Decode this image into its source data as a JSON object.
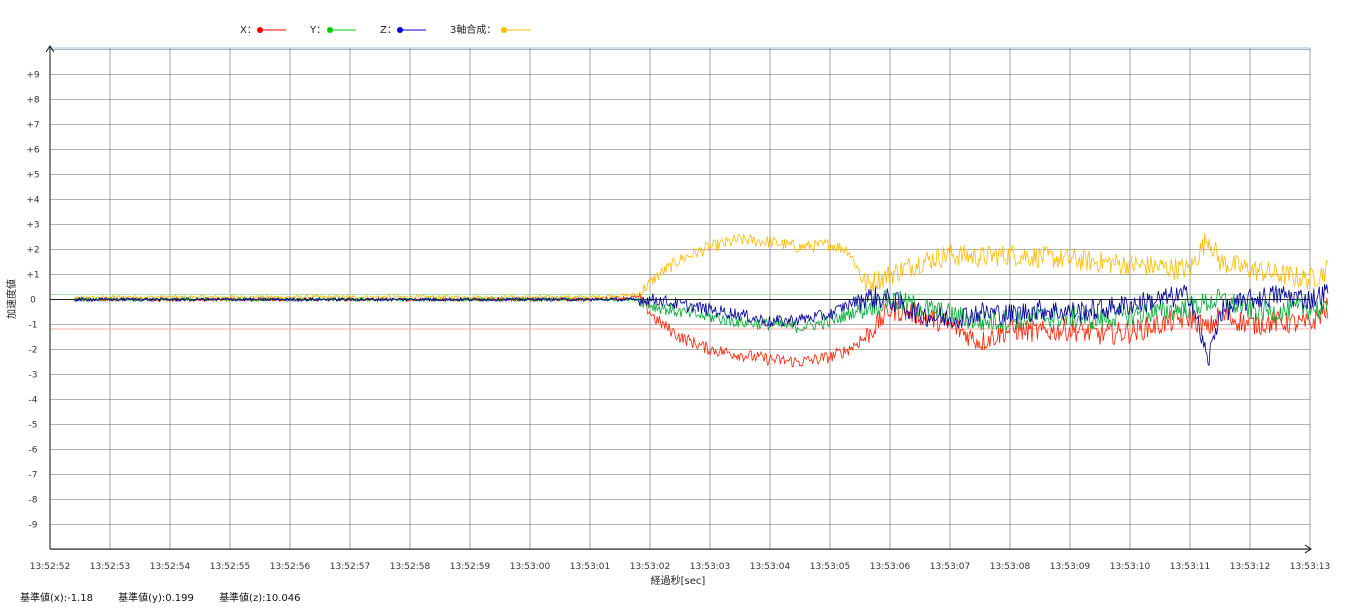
{
  "legend": [
    {
      "label": "X：",
      "color": "#ff0000"
    },
    {
      "label": "Y：",
      "color": "#00cc00"
    },
    {
      "label": "Z：",
      "color": "#0000cc"
    },
    {
      "label": "3軸合成：",
      "color": "#ffbb00"
    }
  ],
  "baseline": {
    "x": "基準値(x):-1.18",
    "y": "基準値(y):0.199",
    "z": "基準値(z):10.046"
  },
  "chart_data": {
    "type": "line",
    "xlabel": "経過秒[sec]",
    "ylabel": "加速度値",
    "x_ticks": [
      "13:52:52",
      "13:52:53",
      "13:52:54",
      "13:52:55",
      "13:52:56",
      "13:52:57",
      "13:52:58",
      "13:52:59",
      "13:53:00",
      "13:53:01",
      "13:53:02",
      "13:53:03",
      "13:53:04",
      "13:53:05",
      "13:53:06",
      "13:53:07",
      "13:53:08",
      "13:53:09",
      "13:53:10",
      "13:53:11",
      "13:53:12",
      "13:53:13"
    ],
    "y_ticks": [
      "+9",
      "+8",
      "+7",
      "+6",
      "+5",
      "+4",
      "+3",
      "+2",
      "+1",
      "0",
      "-1",
      "-2",
      "-3",
      "-4",
      "-5",
      "-6",
      "-7",
      "-8",
      "-9"
    ],
    "xlim_seconds_from_first_tick": [
      0,
      21.3
    ],
    "ylim": [
      -10,
      10
    ],
    "grid": true,
    "legend_position": "top-left",
    "series": [
      {
        "name": "X",
        "color": "#ff2200",
        "x": [
          0.4,
          1,
          2,
          3,
          4,
          5,
          6,
          7,
          8,
          9,
          9.8,
          10.1,
          10.5,
          11,
          11.5,
          12,
          12.5,
          13,
          13.3,
          13.6,
          14,
          14.5,
          15,
          15.5,
          16,
          16.5,
          17,
          17.5,
          18,
          18.5,
          19,
          19.3,
          19.5,
          20,
          20.5,
          21,
          21.3
        ],
        "y": [
          0,
          0,
          0,
          0,
          0,
          0,
          0,
          0,
          0,
          0,
          0.1,
          -0.8,
          -1.5,
          -2,
          -2.2,
          -2.4,
          -2.5,
          -2.3,
          -2,
          -1.5,
          -0.4,
          -0.6,
          -1,
          -1.7,
          -1.2,
          -1.3,
          -1.2,
          -1.4,
          -1.3,
          -1,
          -0.7,
          -1.2,
          -0.6,
          -1,
          -0.9,
          -1,
          -0.3
        ]
      },
      {
        "name": "Y",
        "color": "#00aa33",
        "x": [
          0.4,
          1,
          2,
          3,
          4,
          5,
          6,
          7,
          8,
          9,
          9.8,
          10.1,
          10.5,
          11,
          11.5,
          12,
          12.5,
          13,
          13.3,
          13.6,
          14,
          14.5,
          15,
          15.5,
          16,
          16.5,
          17,
          17.5,
          18,
          18.5,
          19,
          19.5,
          20,
          20.5,
          21,
          21.3
        ],
        "y": [
          0,
          0,
          0,
          0,
          0,
          0,
          0,
          0,
          0,
          0,
          0,
          -0.3,
          -0.5,
          -0.7,
          -0.9,
          -1,
          -1.1,
          -0.9,
          -0.6,
          -0.3,
          0,
          -0.3,
          -0.6,
          -0.9,
          -0.8,
          -0.7,
          -0.7,
          -0.8,
          -0.6,
          -0.5,
          -0.3,
          0,
          -0.4,
          -0.5,
          -0.3,
          -0.5
        ]
      },
      {
        "name": "Z",
        "color": "#000099",
        "x": [
          0.4,
          1,
          2,
          3,
          4,
          5,
          6,
          7,
          8,
          9,
          9.8,
          10.1,
          10.5,
          11,
          11.5,
          12,
          12.5,
          13,
          13.3,
          13.6,
          14,
          14.5,
          15,
          15.5,
          16,
          16.5,
          17,
          17.5,
          18,
          18.5,
          19,
          19.3,
          19.5,
          20,
          20.5,
          21,
          21.3
        ],
        "y": [
          0,
          0,
          0,
          0,
          0,
          0,
          0,
          0,
          0,
          0,
          0,
          0,
          -0.2,
          -0.4,
          -0.6,
          -0.9,
          -0.8,
          -0.6,
          -0.2,
          0.1,
          0,
          -0.6,
          -0.8,
          -0.5,
          -0.6,
          -0.4,
          -0.5,
          -0.4,
          -0.2,
          0,
          0.2,
          -2.5,
          -0.5,
          0,
          0.2,
          0,
          0.3
        ]
      },
      {
        "name": "3軸合成",
        "color": "#ffbb00",
        "x": [
          0.4,
          1,
          2,
          3,
          4,
          5,
          6,
          7,
          8,
          9,
          9.8,
          10.1,
          10.5,
          11,
          11.5,
          12,
          12.5,
          13,
          13.3,
          13.6,
          14,
          14.5,
          15,
          15.5,
          16,
          16.5,
          17,
          17.5,
          18,
          18.5,
          19,
          19.3,
          19.5,
          20,
          20.5,
          21,
          21.3
        ],
        "y": [
          0.05,
          0.1,
          0.1,
          0.1,
          0.1,
          0.1,
          0.1,
          0.1,
          0.1,
          0.1,
          0.2,
          0.9,
          1.6,
          2.1,
          2.4,
          2.3,
          2.1,
          2.2,
          2.0,
          0.6,
          1.0,
          1.5,
          1.8,
          1.7,
          1.8,
          1.7,
          1.6,
          1.5,
          1.4,
          1.3,
          1.2,
          2.5,
          1.5,
          1.2,
          1.0,
          0.8,
          1.2
        ]
      }
    ]
  }
}
